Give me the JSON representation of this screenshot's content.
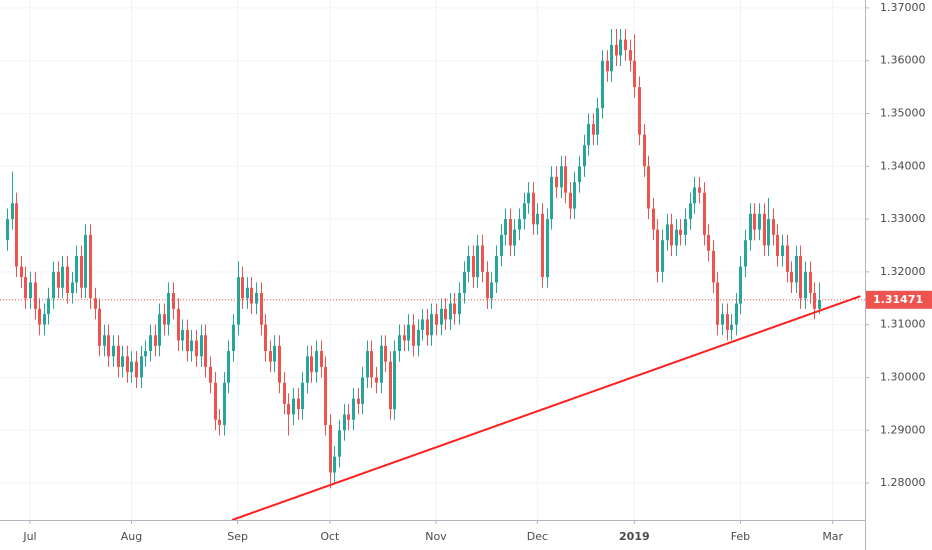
{
  "chart_data": {
    "type": "candlestick",
    "up_color": "#26a69a",
    "down_color": "#ef5350",
    "line_color": "#ff1f1f",
    "grid": true,
    "xlim": [
      -1.5,
      186
    ],
    "ylim": [
      1.273,
      1.3715
    ],
    "yticks": [
      {
        "value": 1.28,
        "label": "1.28000"
      },
      {
        "value": 1.29,
        "label": "1.29000"
      },
      {
        "value": 1.3,
        "label": "1.30000"
      },
      {
        "value": 1.31,
        "label": "1.31000"
      },
      {
        "value": 1.32,
        "label": "1.32000"
      },
      {
        "value": 1.33,
        "label": "1.33000"
      },
      {
        "value": 1.34,
        "label": "1.34000"
      },
      {
        "value": 1.35,
        "label": "1.35000"
      },
      {
        "value": 1.36,
        "label": "1.36000"
      },
      {
        "value": 1.37,
        "label": "1.37000"
      }
    ],
    "xticks": [
      {
        "value": 5,
        "label": "Jul"
      },
      {
        "value": 27,
        "label": "Aug"
      },
      {
        "value": 50,
        "label": "Sep"
      },
      {
        "value": 70,
        "label": "Oct"
      },
      {
        "value": 93,
        "label": "Nov"
      },
      {
        "value": 115,
        "label": "Dec"
      },
      {
        "value": 136,
        "label": "2019"
      },
      {
        "value": 159,
        "label": "Feb"
      },
      {
        "value": 179,
        "label": "Mar"
      }
    ],
    "x": [
      0,
      1,
      2,
      3,
      4,
      5,
      6,
      7,
      8,
      9,
      10,
      11,
      12,
      13,
      14,
      15,
      16,
      17,
      18,
      19,
      20,
      21,
      22,
      23,
      24,
      25,
      26,
      27,
      28,
      29,
      30,
      31,
      32,
      33,
      34,
      35,
      36,
      37,
      38,
      39,
      40,
      41,
      42,
      43,
      44,
      45,
      46,
      47,
      48,
      49,
      50,
      51,
      52,
      53,
      54,
      55,
      56,
      57,
      58,
      59,
      60,
      61,
      62,
      63,
      64,
      65,
      66,
      67,
      68,
      69,
      70,
      71,
      72,
      73,
      74,
      75,
      76,
      77,
      78,
      79,
      80,
      81,
      82,
      83,
      84,
      85,
      86,
      87,
      88,
      89,
      90,
      91,
      92,
      93,
      94,
      95,
      96,
      97,
      98,
      99,
      100,
      101,
      102,
      103,
      104,
      105,
      106,
      107,
      108,
      109,
      110,
      111,
      112,
      113,
      114,
      115,
      116,
      117,
      118,
      119,
      120,
      121,
      122,
      123,
      124,
      125,
      126,
      127,
      128,
      129,
      130,
      131,
      132,
      133,
      134,
      135,
      136,
      137,
      138,
      139,
      140,
      141,
      142,
      143,
      144,
      145,
      146,
      147,
      148,
      149,
      150,
      151,
      152,
      153,
      154,
      155,
      156,
      157,
      158,
      159,
      160,
      161,
      162,
      163,
      164,
      165,
      166,
      167,
      168,
      169,
      170,
      171,
      172,
      173,
      174,
      175,
      176
    ],
    "open": [
      1.326,
      1.33,
      1.333,
      1.321,
      1.319,
      1.315,
      1.318,
      1.313,
      1.31,
      1.312,
      1.315,
      1.32,
      1.317,
      1.321,
      1.316,
      1.318,
      1.323,
      1.317,
      1.327,
      1.315,
      1.313,
      1.306,
      1.308,
      1.304,
      1.306,
      1.302,
      1.304,
      1.301,
      1.303,
      1.3,
      1.304,
      1.305,
      1.308,
      1.306,
      1.312,
      1.31,
      1.316,
      1.313,
      1.307,
      1.309,
      1.305,
      1.307,
      1.304,
      1.308,
      1.302,
      1.299,
      1.292,
      1.291,
      1.299,
      1.305,
      1.31,
      1.319,
      1.315,
      1.317,
      1.314,
      1.316,
      1.31,
      1.305,
      1.303,
      1.306,
      1.299,
      1.295,
      1.293,
      1.296,
      1.294,
      1.299,
      1.304,
      1.301,
      1.305,
      1.302,
      1.291,
      1.282,
      1.285,
      1.29,
      1.293,
      1.292,
      1.296,
      1.295,
      1.3,
      1.305,
      1.3,
      1.299,
      1.306,
      1.303,
      1.294,
      1.305,
      1.308,
      1.307,
      1.31,
      1.306,
      1.309,
      1.311,
      1.308,
      1.312,
      1.31,
      1.313,
      1.311,
      1.314,
      1.312,
      1.316,
      1.32,
      1.323,
      1.319,
      1.325,
      1.32,
      1.315,
      1.318,
      1.323,
      1.327,
      1.33,
      1.325,
      1.328,
      1.33,
      1.333,
      1.335,
      1.329,
      1.331,
      1.319,
      1.33,
      1.338,
      1.336,
      1.34,
      1.335,
      1.332,
      1.337,
      1.34,
      1.344,
      1.348,
      1.346,
      1.351,
      1.36,
      1.358,
      1.363,
      1.361,
      1.364,
      1.362,
      1.36,
      1.355,
      1.346,
      1.34,
      1.332,
      1.328,
      1.32,
      1.326,
      1.329,
      1.325,
      1.328,
      1.327,
      1.33,
      1.333,
      1.336,
      1.335,
      1.327,
      1.324,
      1.318,
      1.31,
      1.312,
      1.309,
      1.31,
      1.314,
      1.321,
      1.326,
      1.331,
      1.328,
      1.331,
      1.325,
      1.33,
      1.327,
      1.323,
      1.325,
      1.32,
      1.318,
      1.323,
      1.315,
      1.32,
      1.316,
      1.313
    ],
    "high": [
      1.332,
      1.339,
      1.335,
      1.323,
      1.321,
      1.32,
      1.32,
      1.315,
      1.314,
      1.317,
      1.322,
      1.322,
      1.323,
      1.323,
      1.32,
      1.325,
      1.325,
      1.329,
      1.329,
      1.317,
      1.315,
      1.31,
      1.31,
      1.308,
      1.308,
      1.306,
      1.306,
      1.305,
      1.305,
      1.306,
      1.307,
      1.31,
      1.31,
      1.314,
      1.314,
      1.318,
      1.318,
      1.315,
      1.311,
      1.311,
      1.309,
      1.309,
      1.31,
      1.31,
      1.304,
      1.301,
      1.294,
      1.301,
      1.307,
      1.312,
      1.322,
      1.321,
      1.319,
      1.319,
      1.318,
      1.318,
      1.312,
      1.307,
      1.308,
      1.308,
      1.301,
      1.297,
      1.298,
      1.298,
      1.301,
      1.306,
      1.306,
      1.307,
      1.307,
      1.304,
      1.293,
      1.287,
      1.292,
      1.295,
      1.295,
      1.298,
      1.298,
      1.302,
      1.307,
      1.307,
      1.302,
      1.308,
      1.308,
      1.305,
      1.307,
      1.31,
      1.31,
      1.312,
      1.312,
      1.311,
      1.313,
      1.313,
      1.314,
      1.314,
      1.315,
      1.315,
      1.316,
      1.316,
      1.318,
      1.322,
      1.325,
      1.325,
      1.327,
      1.327,
      1.322,
      1.32,
      1.325,
      1.329,
      1.332,
      1.332,
      1.33,
      1.332,
      1.335,
      1.337,
      1.337,
      1.333,
      1.333,
      1.332,
      1.34,
      1.34,
      1.342,
      1.342,
      1.337,
      1.339,
      1.342,
      1.346,
      1.35,
      1.35,
      1.353,
      1.362,
      1.362,
      1.366,
      1.366,
      1.366,
      1.366,
      1.364,
      1.365,
      1.357,
      1.348,
      1.342,
      1.334,
      1.33,
      1.328,
      1.331,
      1.331,
      1.33,
      1.33,
      1.332,
      1.335,
      1.338,
      1.338,
      1.337,
      1.329,
      1.326,
      1.32,
      1.314,
      1.314,
      1.312,
      1.316,
      1.323,
      1.328,
      1.333,
      1.333,
      1.333,
      1.333,
      1.334,
      1.332,
      1.329,
      1.327,
      1.327,
      1.322,
      1.325,
      1.325,
      1.322,
      1.322,
      1.318,
      1.318
    ],
    "low": [
      1.324,
      1.328,
      1.319,
      1.317,
      1.313,
      1.313,
      1.311,
      1.308,
      1.308,
      1.31,
      1.313,
      1.315,
      1.315,
      1.314,
      1.314,
      1.316,
      1.315,
      1.315,
      1.313,
      1.311,
      1.304,
      1.304,
      1.302,
      1.302,
      1.3,
      1.3,
      1.299,
      1.299,
      1.298,
      1.298,
      1.302,
      1.303,
      1.304,
      1.304,
      1.308,
      1.308,
      1.311,
      1.305,
      1.305,
      1.303,
      1.303,
      1.302,
      1.302,
      1.3,
      1.297,
      1.29,
      1.289,
      1.289,
      1.297,
      1.303,
      1.308,
      1.313,
      1.313,
      1.312,
      1.312,
      1.308,
      1.303,
      1.301,
      1.301,
      1.297,
      1.293,
      1.289,
      1.291,
      1.292,
      1.292,
      1.297,
      1.299,
      1.299,
      1.3,
      1.289,
      1.279,
      1.28,
      1.283,
      1.288,
      1.29,
      1.29,
      1.293,
      1.293,
      1.298,
      1.298,
      1.297,
      1.297,
      1.301,
      1.292,
      1.292,
      1.303,
      1.305,
      1.305,
      1.304,
      1.304,
      1.307,
      1.306,
      1.306,
      1.308,
      1.308,
      1.309,
      1.309,
      1.31,
      1.31,
      1.314,
      1.318,
      1.317,
      1.317,
      1.318,
      1.313,
      1.313,
      1.316,
      1.321,
      1.325,
      1.323,
      1.323,
      1.326,
      1.328,
      1.331,
      1.327,
      1.327,
      1.317,
      1.317,
      1.328,
      1.334,
      1.334,
      1.333,
      1.33,
      1.33,
      1.335,
      1.338,
      1.342,
      1.344,
      1.344,
      1.349,
      1.356,
      1.356,
      1.359,
      1.359,
      1.36,
      1.358,
      1.353,
      1.344,
      1.338,
      1.33,
      1.326,
      1.318,
      1.318,
      1.324,
      1.323,
      1.323,
      1.325,
      1.325,
      1.328,
      1.331,
      1.333,
      1.325,
      1.322,
      1.316,
      1.308,
      1.308,
      1.307,
      1.307,
      1.308,
      1.312,
      1.319,
      1.324,
      1.326,
      1.326,
      1.323,
      1.323,
      1.325,
      1.321,
      1.321,
      1.318,
      1.316,
      1.316,
      1.313,
      1.313,
      1.314,
      1.311,
      1.312
    ],
    "close": [
      1.33,
      1.333,
      1.321,
      1.319,
      1.315,
      1.318,
      1.313,
      1.31,
      1.312,
      1.315,
      1.32,
      1.317,
      1.321,
      1.316,
      1.318,
      1.323,
      1.317,
      1.327,
      1.315,
      1.313,
      1.306,
      1.308,
      1.304,
      1.306,
      1.302,
      1.304,
      1.301,
      1.303,
      1.3,
      1.304,
      1.305,
      1.308,
      1.306,
      1.312,
      1.31,
      1.316,
      1.313,
      1.307,
      1.309,
      1.305,
      1.307,
      1.304,
      1.308,
      1.302,
      1.299,
      1.292,
      1.291,
      1.299,
      1.305,
      1.31,
      1.319,
      1.315,
      1.317,
      1.314,
      1.316,
      1.31,
      1.305,
      1.303,
      1.306,
      1.299,
      1.295,
      1.293,
      1.296,
      1.294,
      1.299,
      1.304,
      1.301,
      1.305,
      1.302,
      1.291,
      1.282,
      1.285,
      1.29,
      1.293,
      1.292,
      1.296,
      1.295,
      1.3,
      1.305,
      1.3,
      1.299,
      1.306,
      1.303,
      1.294,
      1.305,
      1.308,
      1.307,
      1.31,
      1.306,
      1.309,
      1.311,
      1.308,
      1.312,
      1.31,
      1.313,
      1.311,
      1.314,
      1.312,
      1.316,
      1.32,
      1.323,
      1.319,
      1.325,
      1.32,
      1.315,
      1.318,
      1.323,
      1.327,
      1.33,
      1.325,
      1.328,
      1.33,
      1.333,
      1.335,
      1.329,
      1.331,
      1.319,
      1.33,
      1.338,
      1.336,
      1.34,
      1.335,
      1.332,
      1.337,
      1.34,
      1.344,
      1.348,
      1.346,
      1.351,
      1.36,
      1.358,
      1.363,
      1.361,
      1.364,
      1.362,
      1.36,
      1.355,
      1.346,
      1.34,
      1.332,
      1.328,
      1.32,
      1.326,
      1.329,
      1.325,
      1.328,
      1.327,
      1.33,
      1.333,
      1.336,
      1.335,
      1.327,
      1.324,
      1.318,
      1.31,
      1.312,
      1.309,
      1.31,
      1.314,
      1.321,
      1.326,
      1.331,
      1.328,
      1.331,
      1.325,
      1.33,
      1.327,
      1.323,
      1.325,
      1.32,
      1.318,
      1.323,
      1.315,
      1.32,
      1.316,
      1.313,
      1.31471
    ],
    "trendline": {
      "x": [
        48.8,
        185
      ],
      "y": [
        1.273,
        1.3154
      ]
    }
  }
}
